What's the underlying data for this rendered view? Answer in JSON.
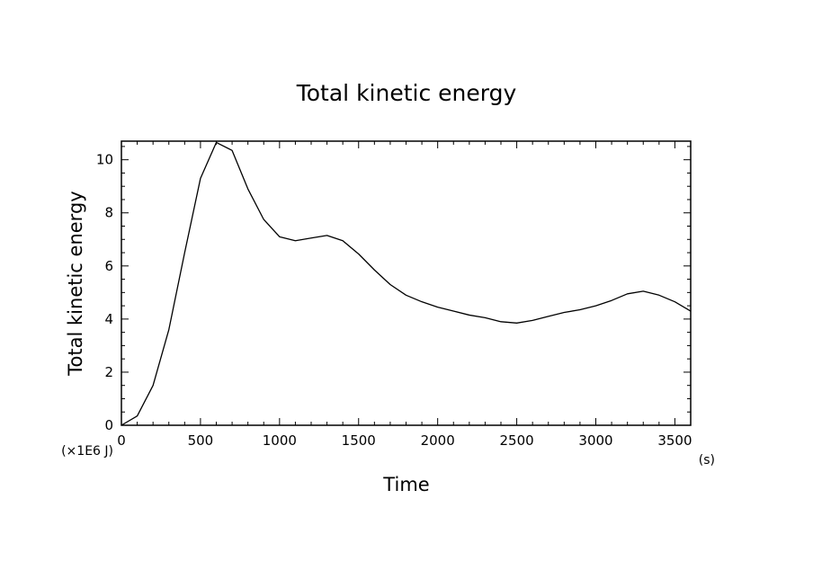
{
  "chart_data": {
    "type": "line",
    "title": "Total kinetic energy",
    "xlabel": "Time",
    "ylabel": "Total kinetic energy",
    "x_unit": "(s)",
    "y_unit": "(×1E6 J)",
    "xlim": [
      0,
      3600
    ],
    "ylim": [
      0,
      10.7
    ],
    "x_ticks": [
      0,
      500,
      1000,
      1500,
      2000,
      2500,
      3000,
      3500
    ],
    "y_ticks": [
      0,
      2,
      4,
      6,
      8,
      10
    ],
    "x_tick_labels": [
      "0",
      "500",
      "1000",
      "1500",
      "2000",
      "2500",
      "3000",
      "3500"
    ],
    "y_tick_labels": [
      "0",
      "2",
      "4",
      "6",
      "8",
      "10"
    ],
    "grid": false,
    "line_color": "#000000",
    "series": [
      {
        "x": [
          0,
          100,
          200,
          300,
          400,
          500,
          600,
          700,
          800,
          900,
          1000,
          1100,
          1200,
          1300,
          1400,
          1500,
          1600,
          1700,
          1800,
          1900,
          2000,
          2100,
          2200,
          2300,
          2400,
          2500,
          2600,
          2700,
          2800,
          2900,
          3000,
          3100,
          3200,
          3300,
          3400,
          3500,
          3600
        ],
        "y": [
          0.0,
          0.35,
          1.5,
          3.6,
          6.5,
          9.3,
          10.65,
          10.35,
          8.9,
          7.75,
          7.1,
          6.95,
          7.05,
          7.15,
          6.95,
          6.45,
          5.85,
          5.3,
          4.9,
          4.65,
          4.45,
          4.3,
          4.15,
          4.05,
          3.9,
          3.85,
          3.95,
          4.1,
          4.25,
          4.35,
          4.5,
          4.7,
          4.95,
          5.05,
          4.9,
          4.65,
          4.3
        ]
      }
    ]
  }
}
